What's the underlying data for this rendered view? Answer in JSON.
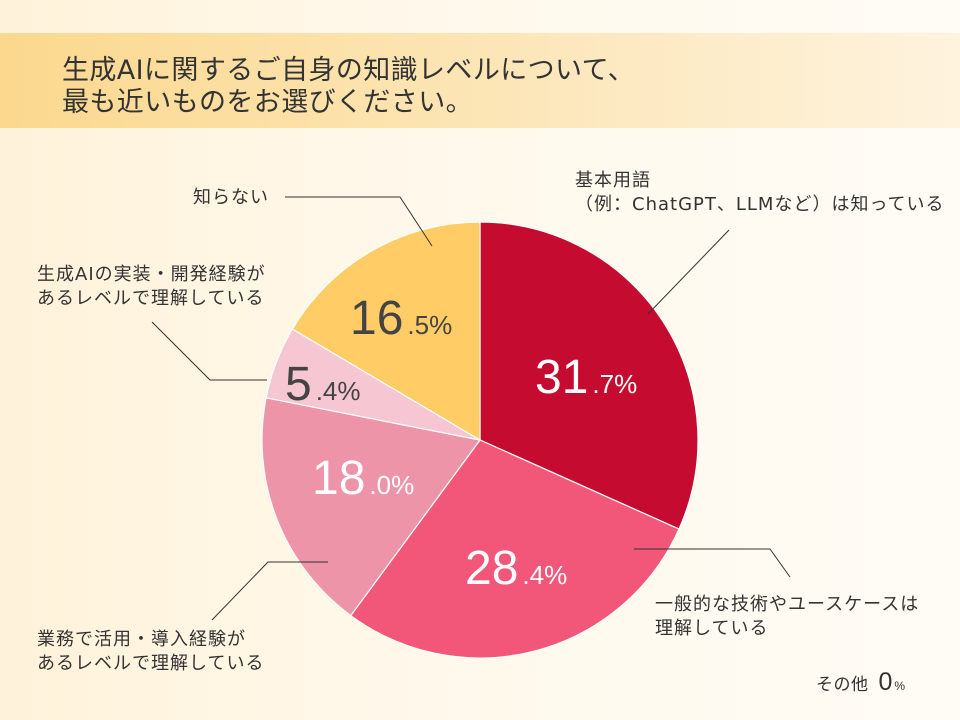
{
  "chart_data": {
    "type": "pie",
    "title": [
      "生成AIに関するご自身の知識レベルについて、",
      "最も近いものをお選びください。"
    ],
    "unit": "%",
    "slices": [
      {
        "label_lines": [
          "基本用語",
          "（例：ChatGPT、LLMなど）は知っている"
        ],
        "value": 31.7,
        "color": "#C60B31",
        "value_color": "#FFFFFF"
      },
      {
        "label_lines": [
          "一般的な技術やユースケースは",
          "理解している"
        ],
        "value": 28.4,
        "color": "#F2577A",
        "value_color": "#FFFFFF"
      },
      {
        "label_lines": [
          "業務で活用・導入経験が",
          "あるレベルで理解している"
        ],
        "value": 18.0,
        "color": "#EE94A9",
        "value_color": "#FFFFFF"
      },
      {
        "label_lines": [
          "生成AIの実装・開発経験が",
          "あるレベルで理解している"
        ],
        "value": 5.4,
        "color": "#F6C6D2",
        "value_color": "#444444"
      },
      {
        "label_lines": [
          "知らない"
        ],
        "value": 16.5,
        "color": "#FFCC66",
        "value_color": "#444444"
      }
    ],
    "other": {
      "label": "その他",
      "value": 0
    }
  }
}
